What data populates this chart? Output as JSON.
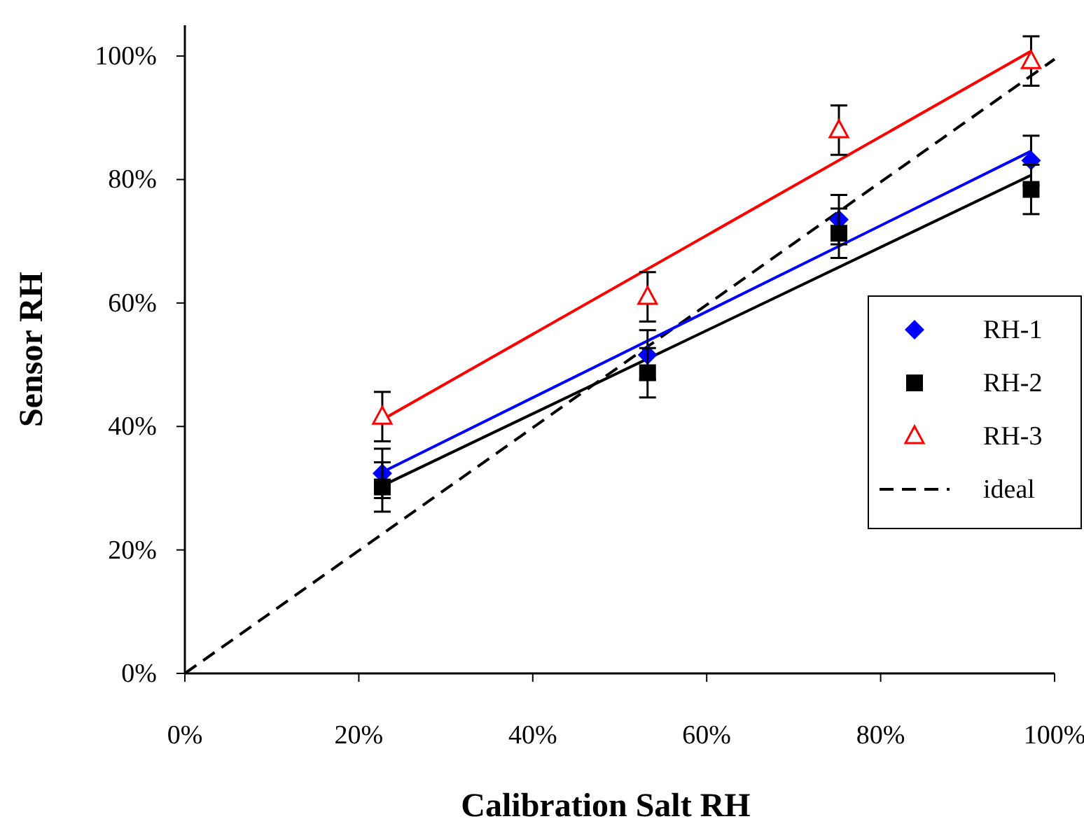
{
  "chart_data": {
    "type": "scatter",
    "xlabel": "Calibration Salt RH",
    "ylabel": "Sensor RH",
    "xlim": [
      0,
      100
    ],
    "ylim": [
      0,
      105
    ],
    "xticks": [
      {
        "value": 0,
        "label": "0%"
      },
      {
        "value": 20,
        "label": "20%"
      },
      {
        "value": 40,
        "label": "40%"
      },
      {
        "value": 60,
        "label": "60%"
      },
      {
        "value": 80,
        "label": "80%"
      },
      {
        "value": 100,
        "label": "100%"
      }
    ],
    "yticks": [
      {
        "value": 0,
        "label": "0%"
      },
      {
        "value": 20,
        "label": "20%"
      },
      {
        "value": 40,
        "label": "40%"
      },
      {
        "value": 60,
        "label": "60%"
      },
      {
        "value": 80,
        "label": "80%"
      },
      {
        "value": 100,
        "label": "100%"
      }
    ],
    "grid": false,
    "legend": "right",
    "x": [
      22.7,
      53.2,
      75.2,
      97.3
    ],
    "series": [
      {
        "name": "RH-1",
        "color": "#0000ff",
        "marker": "diamond",
        "values": [
          32.4,
          51.6,
          73.5,
          83.1
        ],
        "errors": [
          4,
          4,
          4,
          4
        ]
      },
      {
        "name": "RH-2",
        "color": "#000000",
        "marker": "square",
        "values": [
          30.2,
          48.7,
          71.3,
          78.4
        ],
        "errors": [
          4,
          4,
          4,
          4
        ]
      },
      {
        "name": "RH-3",
        "color": "#ff0000",
        "marker": "triangle",
        "values": [
          41.6,
          61.0,
          88.0,
          99.2
        ],
        "errors": [
          4,
          4,
          4,
          4
        ]
      },
      {
        "name": "ideal",
        "type": "line",
        "color": "#000000",
        "line_style": "dashed",
        "marker": "none",
        "x": [
          0,
          100
        ],
        "values": [
          0,
          99.5
        ]
      },
      {
        "type": "line",
        "color": "#0000ff",
        "line_style": "solid",
        "marker": "none",
        "x": [
          22.7,
          97.3
        ],
        "values": [
          32.6,
          84.6
        ]
      },
      {
        "type": "line",
        "color": "#000000",
        "line_style": "solid",
        "marker": "none",
        "x": [
          22.7,
          97.3
        ],
        "values": [
          30.4,
          80.7
        ]
      },
      {
        "type": "line",
        "color": "#ff0000",
        "line_style": "solid",
        "marker": "none",
        "x": [
          22.7,
          97.3
        ],
        "values": [
          41.1,
          100.8
        ]
      }
    ]
  }
}
